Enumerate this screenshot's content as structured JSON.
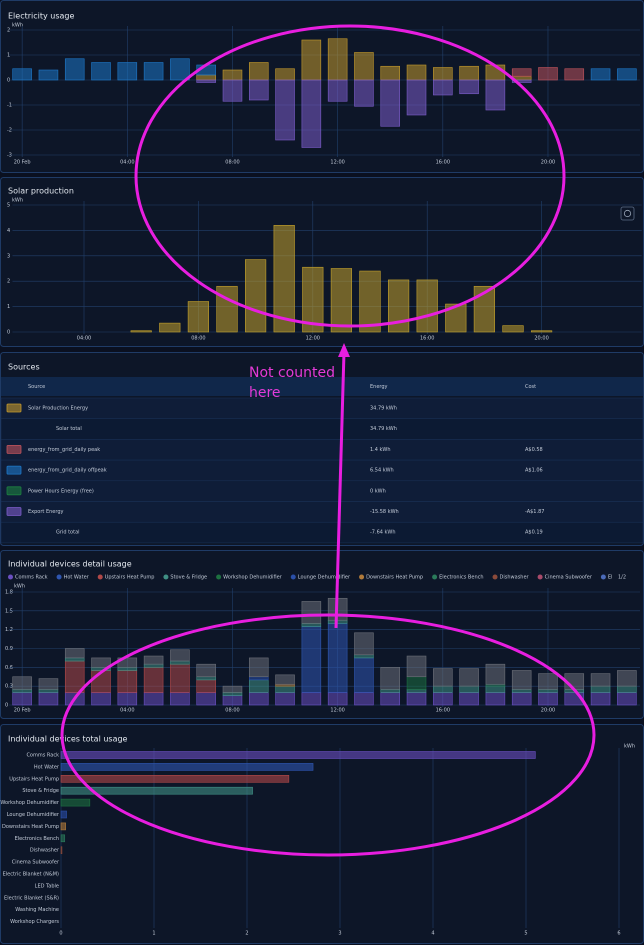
{
  "chart_data": [
    {
      "type": "stacked-bar",
      "title": "Electricity usage",
      "y_label": "kWh",
      "categories": [
        "20 Feb",
        null,
        null,
        null,
        "04:00",
        null,
        null,
        null,
        "08:00",
        null,
        null,
        null,
        "12:00",
        null,
        null,
        null,
        "16:00",
        null,
        null,
        null,
        "20:00",
        null,
        null,
        null
      ],
      "series": [
        {
          "color": "#c49a2c",
          "values": [
            0,
            0,
            0,
            0,
            0,
            0,
            0,
            0.2,
            0.4,
            0.7,
            0.45,
            1.6,
            1.65,
            1.1,
            0.55,
            0.6,
            0.5,
            0.55,
            0.6,
            0.15,
            0,
            0,
            0,
            0
          ]
        },
        {
          "color": "#1e78c8",
          "values": [
            0.45,
            0.4,
            0.85,
            0.7,
            0.7,
            0.7,
            0.85,
            0.4,
            0,
            0,
            0,
            0,
            0,
            0,
            0,
            0,
            0,
            0,
            0,
            0,
            0,
            0,
            0.45,
            0.45
          ]
        },
        {
          "color": "#c0545c",
          "values": [
            0,
            0,
            0,
            0,
            0,
            0,
            0,
            0,
            0,
            0,
            0,
            0,
            0,
            0,
            0,
            0,
            0,
            0,
            0,
            0.3,
            0.5,
            0.45,
            0,
            0
          ]
        },
        {
          "color": "#7b5cc8",
          "values": [
            0,
            0,
            0,
            0,
            0,
            0,
            0,
            -0.1,
            -0.85,
            -0.8,
            -2.4,
            -2.7,
            -0.85,
            -1.05,
            -1.85,
            -1.4,
            -0.6,
            -0.55,
            -1.2,
            -0.1,
            0,
            0,
            0,
            0
          ]
        }
      ],
      "ylim": [
        -3,
        2
      ],
      "yticks": [
        -3,
        -2,
        -1,
        0,
        1,
        2
      ],
      "grid": true
    },
    {
      "type": "bar",
      "title": "Solar production",
      "y_label": "kWh",
      "categories": [
        null,
        null,
        "04:00",
        null,
        null,
        null,
        "08:00",
        null,
        null,
        null,
        "12:00",
        null,
        null,
        null,
        "16:00",
        null,
        null,
        null,
        "20:00",
        null,
        null,
        null
      ],
      "values": [
        0,
        0,
        0,
        0,
        0.05,
        0.35,
        1.2,
        1.8,
        2.85,
        4.2,
        2.55,
        2.5,
        2.4,
        2.05,
        2.05,
        1.1,
        1.8,
        0.25,
        0.05,
        0,
        0,
        0
      ],
      "color": "#c4a22c",
      "ylim": [
        0,
        5
      ],
      "yticks": [
        0,
        1,
        2,
        3,
        4,
        5
      ],
      "grid": true
    },
    {
      "type": "stacked-bar",
      "title": "Individual devices detail usage",
      "y_label": "kWh",
      "legend_page": "1/2",
      "categories": [
        "20 Feb",
        null,
        null,
        null,
        "04:00",
        null,
        null,
        null,
        "08:00",
        null,
        null,
        null,
        "12:00",
        null,
        null,
        null,
        "16:00",
        null,
        null,
        null,
        "20:00",
        null,
        null,
        null
      ],
      "series": [
        {
          "name": "Comms Rack",
          "color": "#6a4fc0",
          "values": [
            0.2,
            0.2,
            0.2,
            0.2,
            0.2,
            0.2,
            0.2,
            0.2,
            0.15,
            0.2,
            0.2,
            0.2,
            0.2,
            0.2,
            0.2,
            0.2,
            0.2,
            0.2,
            0.2,
            0.2,
            0.2,
            0.2,
            0.2,
            0.2
          ]
        },
        {
          "name": "Hot Water",
          "color": "#2f56b0",
          "values": [
            0,
            0,
            0,
            0,
            0,
            0,
            0,
            0,
            0,
            0,
            0,
            1.05,
            1.1,
            0.55,
            0,
            0,
            0,
            0,
            0,
            0,
            0,
            0,
            0,
            0
          ]
        },
        {
          "name": "Upstairs Heat Pump",
          "color": "#b04848",
          "values": [
            0,
            0,
            0.5,
            0.35,
            0.35,
            0.4,
            0.45,
            0.2,
            0,
            0,
            0,
            0,
            0,
            0,
            0,
            0,
            0,
            0,
            0,
            0,
            0,
            0,
            0,
            0
          ]
        },
        {
          "name": "Stove & Fridge",
          "color": "#3f8f84",
          "values": [
            0.05,
            0.05,
            0.05,
            0.05,
            0.05,
            0.05,
            0.05,
            0.05,
            0.05,
            0.2,
            0.1,
            0.05,
            0.05,
            0.05,
            0.05,
            0.05,
            0.1,
            0.1,
            0.1,
            0.05,
            0.05,
            0.05,
            0.1,
            0.1
          ]
        },
        {
          "name": "Workshop Dehumidifier",
          "color": "#1d7040",
          "values": [
            0,
            0,
            0,
            0,
            0,
            0,
            0,
            0,
            0,
            0,
            0,
            0,
            0,
            0,
            0,
            0.2,
            0,
            0,
            0,
            0,
            0,
            0,
            0,
            0
          ]
        },
        {
          "name": "Lounge Dehumidifier",
          "color": "#2a4fa8",
          "values": [
            0,
            0,
            0,
            0,
            0,
            0,
            0,
            0,
            0,
            0.05,
            0,
            0,
            0,
            0,
            0,
            0,
            0,
            0,
            0,
            0,
            0,
            0,
            0,
            0
          ]
        },
        {
          "name": "Downstairs Heat Pump",
          "color": "#b07a3a",
          "values": [
            0,
            0,
            0,
            0,
            0,
            0,
            0,
            0,
            0,
            0,
            0.03,
            0,
            0,
            0,
            0,
            0,
            0,
            0,
            0,
            0,
            0,
            0,
            0,
            0
          ]
        },
        {
          "name": "Electronics Bench",
          "color": "#2a7a5a",
          "values": [
            0,
            0,
            0,
            0,
            0,
            0,
            0,
            0,
            0,
            0,
            0,
            0,
            0,
            0,
            0,
            0,
            0,
            0,
            0.03,
            0,
            0,
            0,
            0,
            0
          ]
        },
        {
          "name": "Dishwasher",
          "color": "#8a4a3a",
          "values": [
            0,
            0,
            0,
            0,
            0,
            0,
            0,
            0,
            0,
            0,
            0,
            0,
            0,
            0,
            0,
            0,
            0,
            0,
            0,
            0,
            0,
            0,
            0,
            0
          ]
        },
        {
          "name": "Cinema Subwoofer",
          "color": "#a84a6a",
          "values": [
            0,
            0,
            0,
            0,
            0,
            0,
            0,
            0,
            0,
            0,
            0,
            0,
            0,
            0,
            0,
            0,
            0,
            0,
            0,
            0,
            0,
            0,
            0,
            0
          ]
        },
        {
          "name": "Electric Blanket (N&M)",
          "color": "#4a6ab8",
          "values": [
            0,
            0,
            0,
            0,
            0,
            0,
            0,
            0,
            0,
            0,
            0,
            0,
            0,
            0,
            0,
            0,
            0,
            0,
            0,
            0,
            0,
            0,
            0,
            0
          ]
        },
        {
          "name": "LED Table",
          "color": "#5a7a8a",
          "values": [
            0,
            0,
            0,
            0,
            0,
            0,
            0,
            0,
            0,
            0,
            0,
            0,
            0,
            0,
            0,
            0,
            0,
            0,
            0,
            0,
            0,
            0,
            0,
            0
          ]
        },
        {
          "color": "#6b6f78",
          "values": [
            0.2,
            0.17,
            0.15,
            0.15,
            0.15,
            0.13,
            0.18,
            0.2,
            0.1,
            0.3,
            0.15,
            0.35,
            0.35,
            0.35,
            0.35,
            0.33,
            0.28,
            0.28,
            0.32,
            0.3,
            0.25,
            0.25,
            0.2,
            0.25
          ]
        }
      ],
      "ylim": [
        0,
        1.8
      ],
      "yticks": [
        0,
        0.3,
        0.6,
        0.9,
        1.2,
        1.5,
        1.8
      ],
      "grid": true
    },
    {
      "type": "hbar",
      "title": "Individual devices total usage",
      "x_label": "kWh",
      "categories": [
        "Comms Rack",
        "Hot Water",
        "Upstairs Heat Pump",
        "Stove & Fridge",
        "Workshop Dehumidifier",
        "Lounge Dehumidifier",
        "Downstairs Heat Pump",
        "Electronics Bench",
        "Dishwasher",
        "Cinema Subwoofer",
        "Electric Blanket (N&M)",
        "LED Table",
        "Electric Blanket (S&R)",
        "Washing Machine",
        "Workshop Chargers"
      ],
      "values": [
        5.1,
        2.71,
        2.45,
        2.06,
        0.31,
        0.06,
        0.05,
        0.04,
        0.01,
        0,
        0,
        0,
        0,
        0,
        0
      ],
      "colors": [
        "#6a4fc0",
        "#2f56b0",
        "#b04848",
        "#3f8f84",
        "#1d7040",
        "#2a4fa8",
        "#b07a3a",
        "#2a7a5a",
        "#8a4a3a",
        "#a84a6a",
        "#4a6ab8",
        "#5a7a8a",
        "#7a6ab8",
        "#5a8aa8",
        "#8a8a4a"
      ],
      "xlim": [
        0,
        6
      ],
      "xticks": [
        0,
        1,
        2,
        3,
        4,
        5,
        6
      ],
      "grid": true
    }
  ],
  "sources": {
    "title": "Sources",
    "columns": [
      "Source",
      "Energy",
      "Cost"
    ],
    "rows": [
      {
        "color": "#c49a2c",
        "cells": [
          "Solar Production Energy",
          "34.79 kWh"
        ]
      },
      {
        "cells": [
          "Solar total",
          "34.79 kWh"
        ]
      },
      {
        "color": "#c0545c",
        "cells": [
          "energy_from_grid_daily peak",
          "1.4 kWh",
          "A$0.58"
        ]
      },
      {
        "color": "#1e78c8",
        "cells": [
          "energy_from_grid_daily offpeak",
          "6.54 kWh",
          "A$1.06"
        ]
      },
      {
        "color": "#1d8040",
        "cells": [
          "Power Hours Energy (free)",
          "0 kWh"
        ]
      },
      {
        "color": "#7b5cc8",
        "cells": [
          "Export Energy",
          "-15.58 kWh",
          "-A$1.87"
        ]
      },
      {
        "cells": [
          "Grid total",
          "-7.64 kWh",
          "A$0.19"
        ]
      }
    ]
  },
  "annotation": "Not counted here"
}
